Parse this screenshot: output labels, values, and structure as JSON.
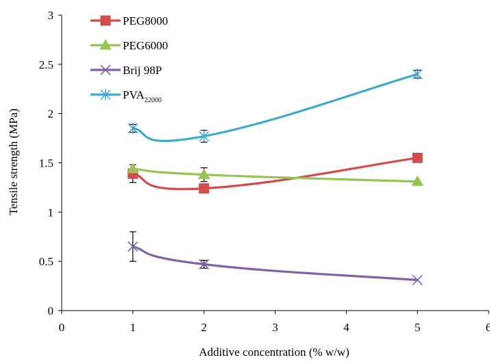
{
  "chart_data": {
    "type": "line",
    "title": "",
    "xlabel": "Additive concentration (% w/w)",
    "ylabel": "Tensile strength (MPa)",
    "xlim": [
      0,
      6
    ],
    "ylim": [
      0,
      3
    ],
    "x_ticks": [
      0,
      1,
      2,
      3,
      4,
      5,
      6
    ],
    "y_ticks": [
      0,
      0.5,
      1,
      1.5,
      2,
      2.5,
      3
    ],
    "x_tick_labels": [
      "0",
      "1",
      "2",
      "3",
      "4",
      "5",
      "6"
    ],
    "y_tick_labels": [
      "0",
      "0.5",
      "1",
      "1.5",
      "2",
      "2.5",
      "3"
    ],
    "grid": false,
    "legend_position": "top-left",
    "x": [
      1,
      2,
      5
    ],
    "series": [
      {
        "name": "PEG8000",
        "name_sub": "",
        "values": [
          1.39,
          1.24,
          1.55
        ],
        "errors": [
          0.09,
          0.0,
          0.0
        ],
        "color": "#d24c4b",
        "marker": "square"
      },
      {
        "name": "PEG6000",
        "name_sub": "",
        "values": [
          1.44,
          1.38,
          1.31
        ],
        "errors": [
          0.0,
          0.07,
          0.0
        ],
        "color": "#98c454",
        "marker": "triangle"
      },
      {
        "name": "Brij 98P",
        "name_sub": "",
        "values": [
          0.65,
          0.47,
          0.31
        ],
        "errors": [
          0.15,
          0.04,
          0.0
        ],
        "color": "#8060a8",
        "marker": "x"
      },
      {
        "name": "PVA",
        "name_sub": "22000",
        "values": [
          1.85,
          1.77,
          2.4
        ],
        "errors": [
          0.04,
          0.06,
          0.04
        ],
        "color": "#3eaacb",
        "marker": "asterisk"
      }
    ]
  }
}
